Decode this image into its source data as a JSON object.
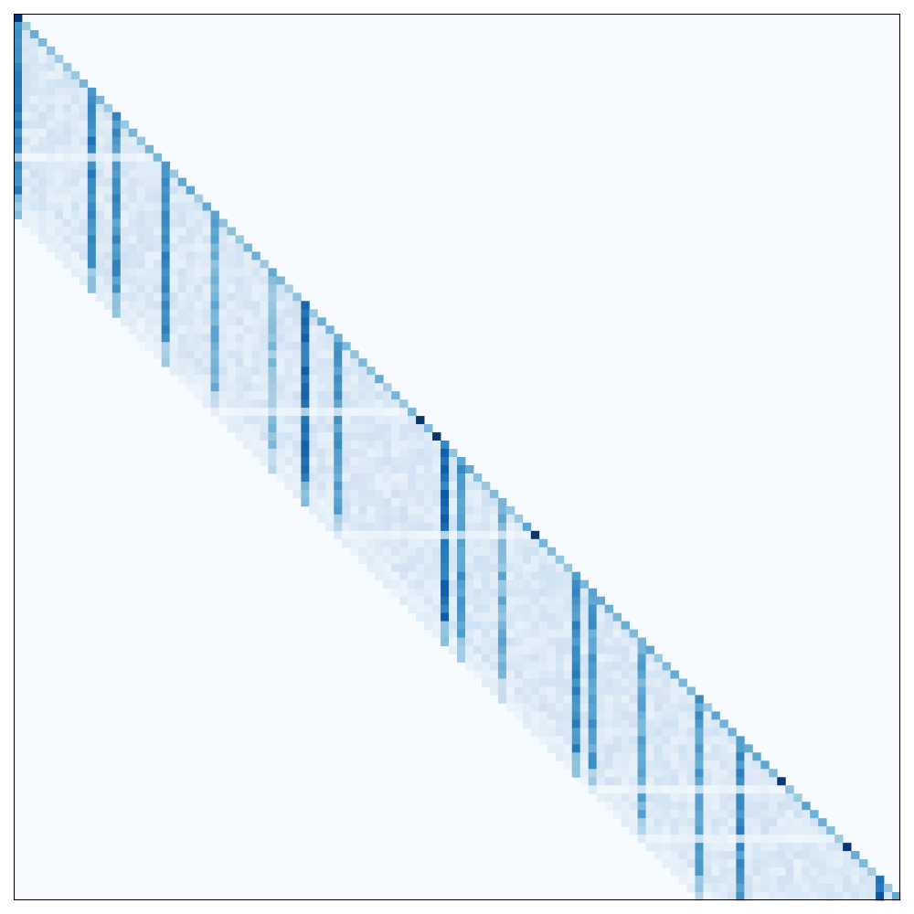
{
  "chart_data": {
    "type": "heatmap",
    "title": "",
    "xlabel": "",
    "ylabel": "",
    "n": 108,
    "band_width": 24,
    "value_range": [
      0,
      1
    ],
    "colormap": "Blues",
    "colors": {
      "background": "#f7fbff",
      "frame": "#000000",
      "low": "#f7fbff",
      "high": "#08306b"
    },
    "ticks": "none",
    "legend": "none",
    "grid": false,
    "strong_columns": [
      {
        "col": 0,
        "value": 0.72
      },
      {
        "col": 9,
        "value": 0.7
      },
      {
        "col": 12,
        "value": 0.64
      },
      {
        "col": 18,
        "value": 0.66
      },
      {
        "col": 24,
        "value": 0.52
      },
      {
        "col": 31,
        "value": 0.46
      },
      {
        "col": 35,
        "value": 0.78
      },
      {
        "col": 39,
        "value": 0.6
      },
      {
        "col": 52,
        "value": 0.78
      },
      {
        "col": 54,
        "value": 0.62
      },
      {
        "col": 59,
        "value": 0.5
      },
      {
        "col": 68,
        "value": 0.66
      },
      {
        "col": 70,
        "value": 0.6
      },
      {
        "col": 76,
        "value": 0.56
      },
      {
        "col": 83,
        "value": 0.6
      },
      {
        "col": 88,
        "value": 0.66
      },
      {
        "col": 105,
        "value": 0.8
      }
    ],
    "diagonal_peaks": [
      {
        "row": 0,
        "value": 0.98
      },
      {
        "row": 49,
        "value": 0.98
      },
      {
        "row": 51,
        "value": 0.98
      },
      {
        "row": 63,
        "value": 0.98
      },
      {
        "row": 93,
        "value": 0.98
      },
      {
        "row": 101,
        "value": 0.98
      }
    ],
    "blank_rows": [
      17,
      48,
      63,
      94,
      100
    ],
    "blank_row_strength": 0.4
  }
}
